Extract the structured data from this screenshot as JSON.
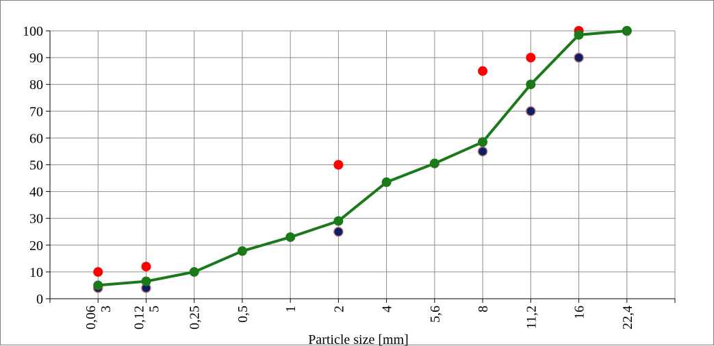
{
  "chart_data": {
    "type": "line",
    "title": "",
    "xlabel": "Particle size [mm]",
    "ylabel": "",
    "categories": [
      "0,063",
      "0,125",
      "0,25",
      "0,5",
      "1",
      "2",
      "4",
      "5,6",
      "8",
      "11,2",
      "16",
      "22,4"
    ],
    "ylim": [
      0,
      100
    ],
    "yticks": [
      0,
      10,
      20,
      30,
      40,
      50,
      60,
      70,
      80,
      90,
      100
    ],
    "grid": true,
    "legend": "none",
    "series": [
      {
        "marker": "circle",
        "color": "#ff0000",
        "line": false,
        "values": [
          10,
          12,
          null,
          null,
          null,
          50,
          null,
          null,
          85,
          90,
          100,
          100
        ]
      },
      {
        "marker": "circle",
        "color": "#0a1f66",
        "edge_color": "#c07070",
        "line": false,
        "values": [
          4,
          4,
          null,
          null,
          null,
          25,
          null,
          null,
          55,
          70,
          90,
          100
        ]
      },
      {
        "marker": "circle",
        "color": "#1a7a1a",
        "line": true,
        "values": [
          5,
          6.5,
          10,
          17.8,
          23,
          29,
          43.5,
          50.5,
          58.5,
          80,
          98.5,
          100
        ]
      }
    ]
  }
}
